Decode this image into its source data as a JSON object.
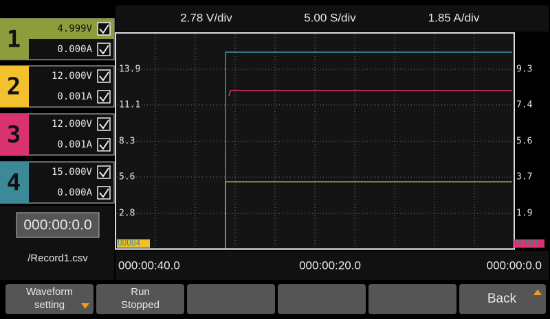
{
  "channels": [
    {
      "number": "1",
      "voltage": "4.999V",
      "current": "0.000A",
      "color": "#8f9c3c"
    },
    {
      "number": "2",
      "voltage": "12.000V",
      "current": "0.001A",
      "color": "#f2c12e"
    },
    {
      "number": "3",
      "voltage": "12.000V",
      "current": "0.001A",
      "color": "#d9336f"
    },
    {
      "number": "4",
      "voltage": "15.000V",
      "current": "0.000A",
      "color": "#3c8a98"
    }
  ],
  "timer": "000:00:0.0",
  "file": "/Record1.csv",
  "scale": {
    "voltage": "2.78 V/div",
    "time": "5.00 S/div",
    "current": "1.85 A/div"
  },
  "left_axis": [
    "13.9",
    "11.1",
    "8.3",
    "5.6",
    "2.8"
  ],
  "right_axis": [
    "9.3",
    "7.4",
    "5.6",
    "3.7",
    "1.9"
  ],
  "time_axis": [
    "000:00:40.0",
    "000:00:20.0",
    "000:00:0.0"
  ],
  "markers": {
    "left": "UUUU4",
    "right": "I4321"
  },
  "buttons": [
    [
      "Waveform",
      "setting"
    ],
    [
      "Run",
      "Stopped"
    ],
    [
      "Back"
    ]
  ]
}
